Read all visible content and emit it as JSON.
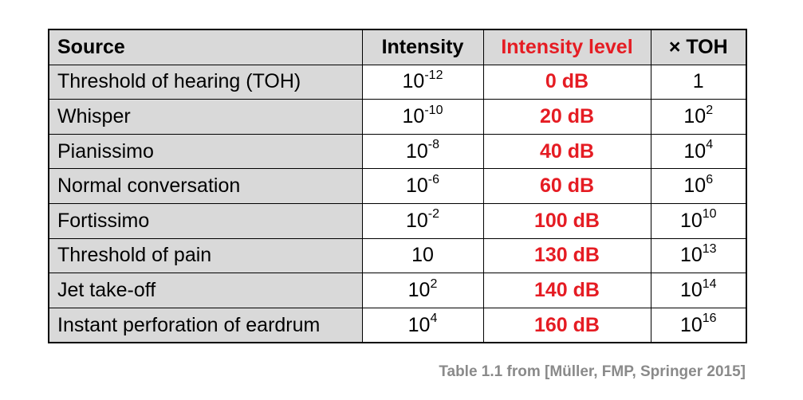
{
  "table": {
    "headers": {
      "source": "Source",
      "intensity": "Intensity",
      "level": "Intensity level",
      "toh": "× TOH"
    },
    "rows": [
      {
        "source": "Threshold of hearing (TOH)",
        "int_base": "10",
        "int_exp": "-12",
        "level": "0 dB",
        "toh_base": "1",
        "toh_exp": ""
      },
      {
        "source": "Whisper",
        "int_base": "10",
        "int_exp": "-10",
        "level": "20 dB",
        "toh_base": "10",
        "toh_exp": "2"
      },
      {
        "source": "Pianissimo",
        "int_base": "10",
        "int_exp": "-8",
        "level": "40 dB",
        "toh_base": "10",
        "toh_exp": "4"
      },
      {
        "source": "Normal conversation",
        "int_base": "10",
        "int_exp": "-6",
        "level": "60 dB",
        "toh_base": "10",
        "toh_exp": "6"
      },
      {
        "source": "Fortissimo",
        "int_base": "10",
        "int_exp": "-2",
        "level": "100 dB",
        "toh_base": "10",
        "toh_exp": "10"
      },
      {
        "source": "Threshold of pain",
        "int_base": "10",
        "int_exp": "",
        "level": "130 dB",
        "toh_base": "10",
        "toh_exp": "13"
      },
      {
        "source": "Jet take-off",
        "int_base": "10",
        "int_exp": "2",
        "level": "140 dB",
        "toh_base": "10",
        "toh_exp": "14"
      },
      {
        "source": "Instant perforation of eardrum",
        "int_base": "10",
        "int_exp": "4",
        "level": "160 dB",
        "toh_base": "10",
        "toh_exp": "16"
      }
    ]
  },
  "caption": "Table 1.1 from [Müller, FMP, Springer 2015]",
  "colors": {
    "accent_red": "#e51c23",
    "header_gray": "#d9d9d9",
    "caption_gray": "#8a8a8a"
  }
}
